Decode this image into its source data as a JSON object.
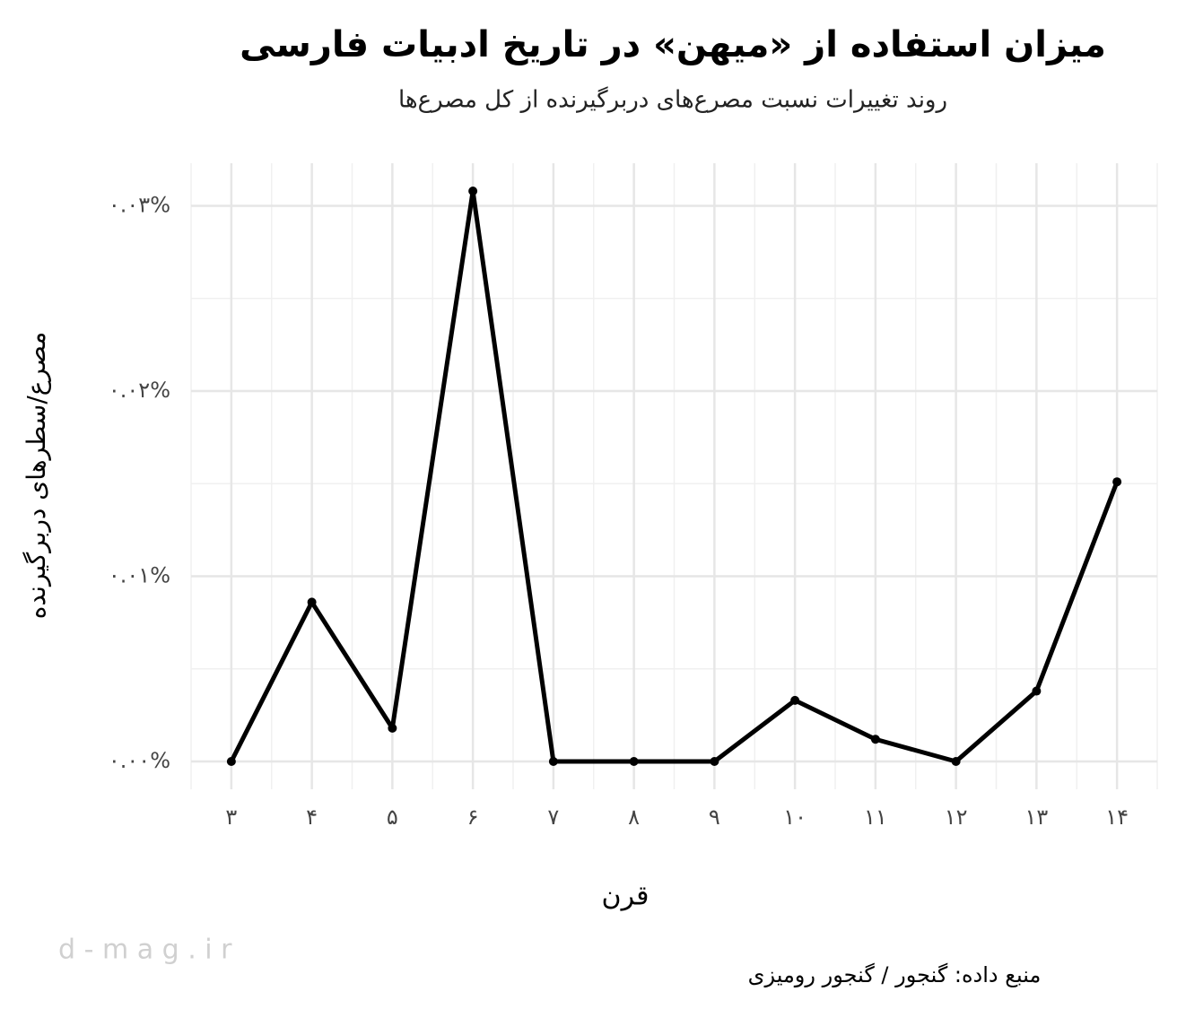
{
  "chart_data": {
    "type": "line",
    "title": "میزان استفاده از «میهن» در تاریخ ادبیات فارسی",
    "subtitle": "روند تغییرات نسبت مصرع‌های دربرگیرنده از کل مصرع‌ها",
    "x_label": "قرن",
    "y_label": "مصرع/سطرهای دربرگیرنده",
    "caption": "منبع داده: گنجور / گنجور رومیزی",
    "watermark": "d - m a g . i r",
    "categories": [
      "۳",
      "۴",
      "۵",
      "۶",
      "۷",
      "۸",
      "۹",
      "۱۰",
      "۱۱",
      "۱۲",
      "۱۳",
      "۱۴"
    ],
    "series": [
      {
        "name": "میهن",
        "color": "#000000",
        "values": [
          0,
          0.0086,
          0.0018,
          0.0308,
          0,
          0,
          0,
          0.0033,
          0.0012,
          0,
          0.0038,
          0.0151
        ]
      }
    ],
    "ylim": [
      -0.0015,
      0.0323
    ],
    "yticks": [
      {
        "value": 0,
        "label": "۰.۰۰%"
      },
      {
        "value": 0.01,
        "label": "۰.۰۱%"
      },
      {
        "value": 0.02,
        "label": "۰.۰۲%"
      },
      {
        "value": 0.03,
        "label": "۰.۰۳%"
      }
    ],
    "grid": true
  }
}
